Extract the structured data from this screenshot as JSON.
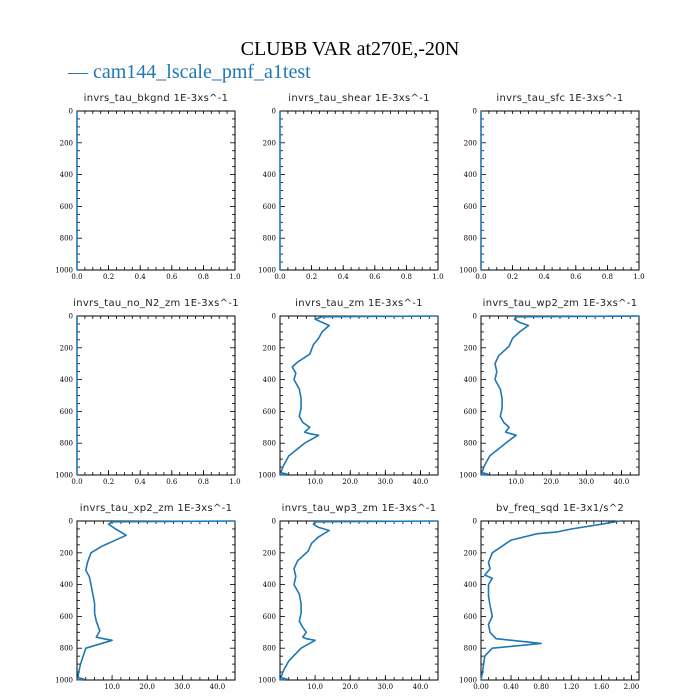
{
  "figure": {
    "title": "CLUBB VAR at270E,-20N",
    "legend_label": "— cam144_lscale_pmf_a1test",
    "line_color": "#1f77b4"
  },
  "chart_data": [
    {
      "type": "line",
      "title": "invrs_tau_bkgnd   1E-3xs^-1",
      "xlim": [
        0,
        1.0
      ],
      "ylim": [
        1000,
        0
      ],
      "xticks": [
        0.0,
        0.2,
        0.4,
        0.6,
        0.8,
        1.0
      ],
      "xtick_labels": [
        "0.0",
        "0.2",
        "0.4",
        "0.6",
        "0.8",
        "1.0"
      ],
      "yticks": [
        0,
        200,
        400,
        600,
        800,
        1000
      ],
      "ytick_labels": [
        "0",
        "200",
        "400",
        "600",
        "800",
        "1000"
      ],
      "series": [
        {
          "x": [
            0,
            0
          ],
          "y": [
            0,
            1000
          ]
        }
      ]
    },
    {
      "type": "line",
      "title": "invrs_tau_shear   1E-3xs^-1",
      "xlim": [
        0,
        1.0
      ],
      "ylim": [
        1000,
        0
      ],
      "xticks": [
        0.0,
        0.2,
        0.4,
        0.6,
        0.8,
        1.0
      ],
      "xtick_labels": [
        "0.0",
        "0.2",
        "0.4",
        "0.6",
        "0.8",
        "1.0"
      ],
      "yticks": [
        0,
        200,
        400,
        600,
        800,
        1000
      ],
      "ytick_labels": [
        "0",
        "200",
        "400",
        "600",
        "800",
        "1000"
      ],
      "series": [
        {
          "x": [
            0,
            0
          ],
          "y": [
            0,
            1000
          ]
        }
      ]
    },
    {
      "type": "line",
      "title": "invrs_tau_sfc   1E-3xs^-1",
      "xlim": [
        0,
        1.0
      ],
      "ylim": [
        1000,
        0
      ],
      "xticks": [
        0.0,
        0.2,
        0.4,
        0.6,
        0.8,
        1.0
      ],
      "xtick_labels": [
        "0.0",
        "0.2",
        "0.4",
        "0.6",
        "0.8",
        "1.0"
      ],
      "yticks": [
        0,
        200,
        400,
        600,
        800,
        1000
      ],
      "ytick_labels": [
        "0",
        "200",
        "400",
        "600",
        "800",
        "1000"
      ],
      "series": [
        {
          "x": [
            0,
            0
          ],
          "y": [
            0,
            1000
          ]
        }
      ]
    },
    {
      "type": "line",
      "title": "invrs_tau_no_N2_zm   1E-3xs^-1",
      "xlim": [
        0,
        1.0
      ],
      "ylim": [
        1000,
        0
      ],
      "xticks": [
        0.0,
        0.2,
        0.4,
        0.6,
        0.8,
        1.0
      ],
      "xtick_labels": [
        "0.0",
        "0.2",
        "0.4",
        "0.6",
        "0.8",
        "1.0"
      ],
      "yticks": [
        0,
        200,
        400,
        600,
        800,
        1000
      ],
      "ytick_labels": [
        "0",
        "200",
        "400",
        "600",
        "800",
        "1000"
      ],
      "series": [
        {
          "x": [
            0,
            0
          ],
          "y": [
            0,
            1000
          ]
        }
      ]
    },
    {
      "type": "line",
      "title": "invrs_tau_zm   1E-3xs^-1",
      "xlim": [
        0,
        45
      ],
      "ylim": [
        1000,
        0
      ],
      "xticks": [
        10,
        20,
        30,
        40
      ],
      "xtick_labels": [
        "10.0",
        "20.0",
        "30.0",
        "40.0"
      ],
      "yticks": [
        0,
        200,
        400,
        600,
        800,
        1000
      ],
      "ytick_labels": [
        "0",
        "200",
        "400",
        "600",
        "800",
        "1000"
      ],
      "series": [
        {
          "x": [
            45,
            12,
            10,
            12,
            14,
            12,
            11,
            9.5,
            8.5,
            5,
            3.5,
            4.5,
            4,
            5.5,
            6,
            6,
            5.5,
            6.5,
            8.5,
            7,
            8.5,
            11,
            7,
            2.5,
            1,
            0.4,
            0.3,
            2,
            0.3,
            0
          ],
          "y": [
            0,
            5,
            20,
            40,
            60,
            100,
            140,
            180,
            240,
            290,
            320,
            360,
            400,
            460,
            520,
            580,
            630,
            670,
            700,
            730,
            740,
            750,
            800,
            880,
            940,
            975,
            985,
            995,
            998,
            1000
          ]
        }
      ]
    },
    {
      "type": "line",
      "title": "invrs_tau_wp2_zm   1E-3xs^-1",
      "xlim": [
        0,
        45
      ],
      "ylim": [
        1000,
        0
      ],
      "xticks": [
        10,
        20,
        30,
        40
      ],
      "xtick_labels": [
        "10.0",
        "20.0",
        "30.0",
        "40.0"
      ],
      "yticks": [
        0,
        200,
        400,
        600,
        800,
        1000
      ],
      "ytick_labels": [
        "0",
        "200",
        "400",
        "600",
        "800",
        "1000"
      ],
      "series": [
        {
          "x": [
            45,
            10,
            9.5,
            11,
            13.5,
            11,
            9,
            8,
            5,
            4,
            4.5,
            4,
            5.5,
            6,
            6,
            5.5,
            6.5,
            8,
            7,
            8.5,
            10,
            7,
            2.5,
            1,
            0.4,
            0.3,
            2,
            0.3,
            0
          ],
          "y": [
            0,
            5,
            20,
            40,
            60,
            100,
            140,
            190,
            250,
            300,
            350,
            400,
            460,
            520,
            580,
            630,
            670,
            700,
            730,
            740,
            750,
            800,
            880,
            940,
            975,
            985,
            995,
            998,
            1000
          ]
        }
      ]
    },
    {
      "type": "line",
      "title": "invrs_tau_xp2_zm   1E-3xs^-1",
      "xlim": [
        0,
        45
      ],
      "ylim": [
        1000,
        0
      ],
      "xticks": [
        10,
        20,
        30,
        40
      ],
      "xtick_labels": [
        "10.0",
        "20.0",
        "30.0",
        "40.0"
      ],
      "yticks": [
        0,
        200,
        400,
        600,
        800,
        1000
      ],
      "ytick_labels": [
        "0",
        "200",
        "400",
        "600",
        "800",
        "1000"
      ],
      "series": [
        {
          "x": [
            45,
            10,
            9,
            11,
            14,
            10,
            7,
            4,
            3,
            2.5,
            3.5,
            4,
            4.5,
            5,
            5,
            5.5,
            6.5,
            5.5,
            7.5,
            10,
            2.5,
            1,
            0.4,
            0.3,
            2,
            0.3,
            0
          ],
          "y": [
            0,
            5,
            20,
            50,
            90,
            130,
            160,
            200,
            260,
            310,
            350,
            400,
            460,
            520,
            580,
            630,
            690,
            730,
            740,
            750,
            800,
            900,
            960,
            985,
            995,
            998,
            1000
          ]
        }
      ]
    },
    {
      "type": "line",
      "title": "invrs_tau_wp3_zm   1E-3xs^-1",
      "xlim": [
        0,
        45
      ],
      "ylim": [
        1000,
        0
      ],
      "xticks": [
        10,
        20,
        30,
        40
      ],
      "xtick_labels": [
        "10.0",
        "20.0",
        "30.0",
        "40.0"
      ],
      "yticks": [
        0,
        200,
        400,
        600,
        800,
        1000
      ],
      "ytick_labels": [
        "0",
        "200",
        "400",
        "600",
        "800",
        "1000"
      ],
      "series": [
        {
          "x": [
            45,
            10,
            9.5,
            11,
            14,
            11,
            9,
            8,
            5,
            4,
            4.5,
            4,
            5.5,
            6,
            6,
            5.5,
            6.5,
            7.5,
            6.5,
            7.5,
            10,
            6,
            2.5,
            1,
            0.4,
            0.3,
            2,
            0.3,
            0
          ],
          "y": [
            0,
            5,
            20,
            40,
            60,
            100,
            140,
            190,
            250,
            300,
            350,
            400,
            460,
            520,
            580,
            630,
            670,
            700,
            730,
            740,
            750,
            800,
            880,
            940,
            975,
            985,
            995,
            998,
            1000
          ]
        }
      ]
    },
    {
      "type": "line",
      "title": "bv_freq_sqd   1E-3x1/s^2",
      "xlim": [
        0,
        2.1
      ],
      "ylim": [
        1000,
        0
      ],
      "xticks": [
        0.0,
        0.4,
        0.8,
        1.2,
        1.6,
        2.0
      ],
      "xtick_labels": [
        "0.00",
        "0.40",
        "0.80",
        "1.20",
        "1.60",
        "2.00"
      ],
      "yticks": [
        0,
        200,
        400,
        600,
        800,
        1000
      ],
      "ytick_labels": [
        "0",
        "200",
        "400",
        "600",
        "800",
        "1000"
      ],
      "series": [
        {
          "x": [
            1.85,
            1.6,
            1.2,
            1.0,
            0.75,
            0.4,
            0.15,
            0.1,
            0.12,
            0.05,
            0.15,
            0.1,
            0.1,
            0.12,
            0.15,
            0.1,
            0.12,
            0.2,
            0.8,
            0.15,
            0.05,
            0.02,
            0
          ],
          "y": [
            0,
            20,
            50,
            70,
            80,
            120,
            200,
            260,
            300,
            340,
            360,
            400,
            470,
            530,
            600,
            650,
            700,
            740,
            770,
            800,
            850,
            950,
            1000
          ]
        }
      ]
    }
  ]
}
